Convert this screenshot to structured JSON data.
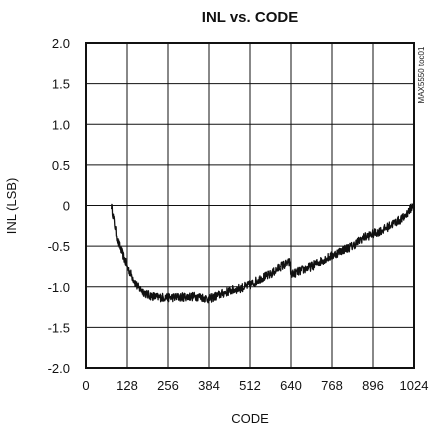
{
  "chart_data": {
    "type": "line",
    "title": "INL vs. CODE",
    "xlabel": "CODE",
    "ylabel": "INL (LSB)",
    "tag": "MAX5550 toc01",
    "xlim": [
      0,
      1024
    ],
    "ylim": [
      -2.0,
      2.0
    ],
    "x_ticks": [
      0,
      128,
      256,
      384,
      512,
      640,
      768,
      896,
      1024
    ],
    "x_tick_labels": [
      "0",
      "128",
      "256",
      "384",
      "512",
      "640",
      "768",
      "896",
      "1024"
    ],
    "y_ticks": [
      2.0,
      1.5,
      1.0,
      0.5,
      0,
      -0.5,
      -1.0,
      -1.5,
      -2.0
    ],
    "y_tick_labels": [
      "2.0",
      "1.5",
      "1.0",
      "0.5",
      "0",
      "-0.5",
      "-1.0",
      "-1.5",
      "-2.0"
    ],
    "grid": true,
    "series": [
      {
        "color": "#111111",
        "x": [
          80,
          100,
          128,
          160,
          192,
          224,
          256,
          288,
          320,
          352,
          384,
          416,
          448,
          480,
          512,
          544,
          576,
          608,
          636,
          640,
          672,
          704,
          736,
          768,
          800,
          832,
          864,
          896,
          928,
          960,
          992,
          1024
        ],
        "y": [
          0.0,
          -0.45,
          -0.75,
          -1.0,
          -1.1,
          -1.13,
          -1.13,
          -1.13,
          -1.12,
          -1.12,
          -1.15,
          -1.1,
          -1.05,
          -1.02,
          -0.98,
          -0.9,
          -0.85,
          -0.75,
          -0.7,
          -0.85,
          -0.8,
          -0.75,
          -0.68,
          -0.62,
          -0.55,
          -0.5,
          -0.4,
          -0.35,
          -0.3,
          -0.22,
          -0.15,
          0.02
        ]
      }
    ]
  }
}
